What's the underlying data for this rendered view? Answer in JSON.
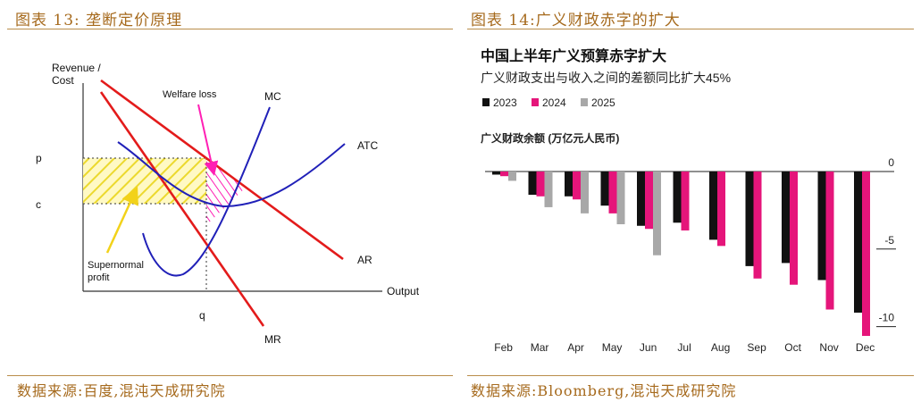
{
  "left": {
    "title": "图表 13:  垄断定价原理",
    "source": "数据来源:百度,混沌天成研究院",
    "labels": {
      "revenue_cost": [
        "Revenue /",
        "Cost"
      ],
      "welfare_loss": "Welfare loss",
      "mc": "MC",
      "atc": "ATC",
      "ar": "AR",
      "mr": "MR",
      "output": "Output",
      "p": "p",
      "c": "c",
      "q": "q",
      "supernormal": [
        "Supernormal",
        "profit"
      ]
    },
    "colors": {
      "ar_mr": "#e31b1b",
      "mc_atc": "#2020b8",
      "profit_fill": "#f2e63a",
      "welfare": "#ff1fb4",
      "arrow_yellow": "#f2d21a"
    }
  },
  "right": {
    "title": "图表 14:广义财政赤字的扩大",
    "source": "数据来源:Bloomberg,混沌天成研究院",
    "chart_title": "中国上半年广义预算赤字扩大",
    "chart_subtitle": "广义财政支出与收入之间的差额同比扩大45%",
    "unit_label": "广义财政余额 (万亿元人民币)"
  },
  "chart_data": {
    "type": "bar",
    "categories": [
      "Feb",
      "Mar",
      "Apr",
      "May",
      "Jun",
      "Jul",
      "Aug",
      "Sep",
      "Oct",
      "Nov",
      "Dec"
    ],
    "series": [
      {
        "name": "2023",
        "color": "#111111",
        "values": [
          -0.2,
          -1.5,
          -1.6,
          -2.2,
          -3.5,
          -3.3,
          -4.4,
          -6.1,
          -5.9,
          -7.0,
          -9.1
        ]
      },
      {
        "name": "2024",
        "color": "#e5157a",
        "values": [
          -0.3,
          -1.6,
          -1.8,
          -2.7,
          -3.7,
          -3.8,
          -4.8,
          -6.9,
          -7.3,
          -8.9,
          -10.6
        ]
      },
      {
        "name": "2025",
        "color": "#a8a8a8",
        "values": [
          -0.6,
          -2.3,
          -2.7,
          -3.4,
          -5.4,
          null,
          null,
          null,
          null,
          null,
          null
        ]
      }
    ],
    "yticks": [
      0,
      -5,
      -10
    ],
    "ylim": [
      -10.6,
      0
    ]
  }
}
